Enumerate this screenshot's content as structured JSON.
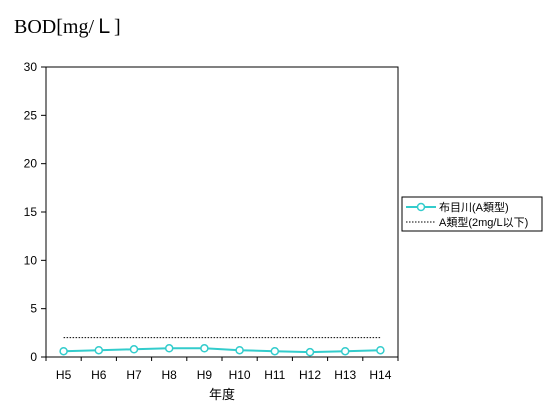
{
  "chart_data": {
    "type": "line",
    "title": "BOD[mg/Ｌ]",
    "xlabel": "年度",
    "ylabel": "",
    "ylim": [
      0,
      30
    ],
    "yticks": [
      0,
      5,
      10,
      15,
      20,
      25,
      30
    ],
    "categories": [
      "H5",
      "H6",
      "H7",
      "H8",
      "H9",
      "H10",
      "H11",
      "H12",
      "H13",
      "H14"
    ],
    "grid": false,
    "legend_position": "right",
    "series": [
      {
        "name": "布目川(A類型)",
        "values": [
          0.6,
          0.7,
          0.8,
          0.9,
          0.9,
          0.7,
          0.6,
          0.5,
          0.6,
          0.7
        ],
        "color": "#33cccc",
        "marker": "circle",
        "line_style": "solid"
      },
      {
        "name": "A類型(2mg/L以下)",
        "values": [
          2,
          2,
          2,
          2,
          2,
          2,
          2,
          2,
          2,
          2
        ],
        "color": "#000000",
        "marker": "none",
        "line_style": "dotted"
      }
    ]
  }
}
